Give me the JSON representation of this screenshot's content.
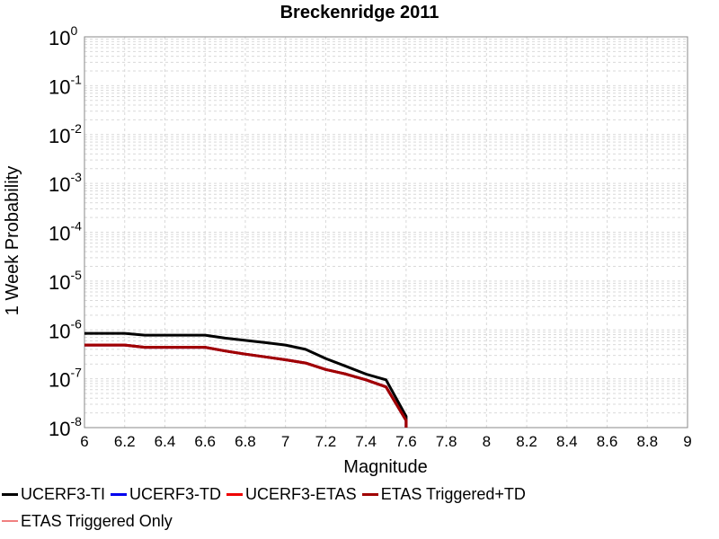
{
  "chart_data": {
    "type": "line",
    "title": "Breckenridge 2011",
    "xlabel": "Magnitude",
    "ylabel": "1 Week Probability",
    "xlim": [
      6,
      9
    ],
    "ylim": [
      1e-08,
      1
    ],
    "yscale": "log",
    "grid": true,
    "legend_position": "bottom",
    "x_ticks": [
      "6",
      "6.2",
      "6.4",
      "6.6",
      "6.8",
      "7",
      "7.2",
      "7.4",
      "7.6",
      "7.8",
      "8",
      "8.2",
      "8.4",
      "8.6",
      "8.8",
      "9"
    ],
    "y_ticks": [
      {
        "base": "10",
        "exp": "0"
      },
      {
        "base": "10",
        "exp": "-1"
      },
      {
        "base": "10",
        "exp": "-2"
      },
      {
        "base": "10",
        "exp": "-3"
      },
      {
        "base": "10",
        "exp": "-4"
      },
      {
        "base": "10",
        "exp": "-5"
      },
      {
        "base": "10",
        "exp": "-6"
      },
      {
        "base": "10",
        "exp": "-7"
      },
      {
        "base": "10",
        "exp": "-8"
      }
    ],
    "series": [
      {
        "name": "UCERF3-TI",
        "color": "#000000",
        "x": [
          6.0,
          6.2,
          6.3,
          6.4,
          6.5,
          6.6,
          6.7,
          6.8,
          6.9,
          7.0,
          7.1,
          7.2,
          7.3,
          7.4,
          7.5,
          7.6,
          7.6
        ],
        "y": [
          8.5e-07,
          8.5e-07,
          7.8e-07,
          7.8e-07,
          7.8e-07,
          7.8e-07,
          6.8e-07,
          6.1e-07,
          5.5e-07,
          4.9e-07,
          4e-07,
          2.6e-07,
          1.8e-07,
          1.25e-07,
          9.5e-08,
          1.7e-08,
          1e-08
        ]
      },
      {
        "name": "UCERF3-TD",
        "color": "#0000ee",
        "x": [
          6.0,
          6.2,
          6.3,
          6.4,
          6.5,
          6.6,
          6.7,
          6.8,
          6.9,
          7.0,
          7.1,
          7.2,
          7.3,
          7.4,
          7.5,
          7.6,
          7.6
        ],
        "y": [
          4.9e-07,
          4.9e-07,
          4.4e-07,
          4.4e-07,
          4.4e-07,
          4.4e-07,
          3.7e-07,
          3.2e-07,
          2.8e-07,
          2.45e-07,
          2.1e-07,
          1.55e-07,
          1.25e-07,
          9.5e-08,
          6.8e-08,
          1.4e-08,
          1e-08
        ]
      },
      {
        "name": "UCERF3-ETAS",
        "color": "#ee0000",
        "x": [
          6.0,
          6.2,
          6.3,
          6.4,
          6.5,
          6.6,
          6.7,
          6.8,
          6.9,
          7.0,
          7.1,
          7.2,
          7.3,
          7.4,
          7.5,
          7.6,
          7.6
        ],
        "y": [
          4.9e-07,
          4.9e-07,
          4.4e-07,
          4.4e-07,
          4.4e-07,
          4.4e-07,
          3.7e-07,
          3.2e-07,
          2.8e-07,
          2.45e-07,
          2.1e-07,
          1.55e-07,
          1.25e-07,
          9.5e-08,
          6.8e-08,
          1.4e-08,
          1e-08
        ]
      },
      {
        "name": "ETAS Triggered+TD",
        "color": "#a00000",
        "x": [
          6.0,
          6.2,
          6.3,
          6.4,
          6.5,
          6.6,
          6.7,
          6.8,
          6.9,
          7.0,
          7.1,
          7.2,
          7.3,
          7.4,
          7.5,
          7.6,
          7.6
        ],
        "y": [
          4.9e-07,
          4.9e-07,
          4.4e-07,
          4.4e-07,
          4.4e-07,
          4.4e-07,
          3.7e-07,
          3.2e-07,
          2.8e-07,
          2.45e-07,
          2.1e-07,
          1.55e-07,
          1.25e-07,
          9.5e-08,
          6.8e-08,
          1.4e-08,
          1e-08
        ]
      },
      {
        "name": "ETAS Triggered Only",
        "color": "#f08080",
        "x": [],
        "y": []
      }
    ]
  }
}
